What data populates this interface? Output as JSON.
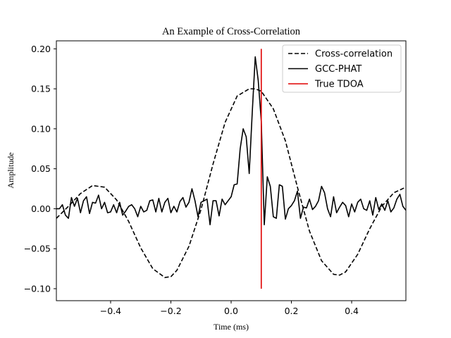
{
  "chart_data": {
    "type": "line",
    "title": "An Example of Cross-Correlation",
    "xlabel": "Time (ms)",
    "ylabel": "Amplitude",
    "xlim": [
      -0.58,
      0.58
    ],
    "ylim": [
      -0.115,
      0.21
    ],
    "xticks": [
      -0.4,
      -0.2,
      0.0,
      0.2,
      0.4
    ],
    "xtick_labels": [
      "−0.4",
      "−0.2",
      "0.0",
      "0.2",
      "0.4"
    ],
    "yticks": [
      0.2,
      0.15,
      0.1,
      0.05,
      0.0,
      -0.05,
      -0.1
    ],
    "ytick_labels": [
      "0.20",
      "0.15",
      "0.10",
      "0.05",
      "0.00",
      "−0.05",
      "−0.10"
    ],
    "grid": false,
    "legend_position": "top-right",
    "series": [
      {
        "name": "Cross-correlation",
        "color": "#000000",
        "style": "dashed",
        "x": [
          -0.58,
          -0.54,
          -0.5,
          -0.46,
          -0.42,
          -0.38,
          -0.34,
          -0.3,
          -0.26,
          -0.22,
          -0.2,
          -0.18,
          -0.14,
          -0.1,
          -0.06,
          -0.02,
          0.02,
          0.06,
          0.08,
          0.1,
          0.14,
          0.18,
          0.22,
          0.26,
          0.3,
          0.34,
          0.36,
          0.38,
          0.42,
          0.46,
          0.5,
          0.54,
          0.58
        ],
        "y": [
          -0.012,
          0.003,
          0.019,
          0.029,
          0.027,
          0.011,
          -0.016,
          -0.049,
          -0.075,
          -0.086,
          -0.085,
          -0.077,
          -0.047,
          -0.001,
          0.056,
          0.108,
          0.141,
          0.15,
          0.15,
          0.147,
          0.125,
          0.085,
          0.027,
          -0.028,
          -0.065,
          -0.082,
          -0.083,
          -0.079,
          -0.057,
          -0.025,
          0.003,
          0.02,
          0.027
        ]
      },
      {
        "name": "GCC-PHAT",
        "color": "#000000",
        "style": "solid",
        "x": [
          -0.58,
          -0.57,
          -0.56,
          -0.55,
          -0.54,
          -0.53,
          -0.52,
          -0.51,
          -0.5,
          -0.49,
          -0.48,
          -0.47,
          -0.46,
          -0.45,
          -0.44,
          -0.43,
          -0.42,
          -0.41,
          -0.4,
          -0.39,
          -0.38,
          -0.37,
          -0.36,
          -0.35,
          -0.34,
          -0.33,
          -0.32,
          -0.31,
          -0.3,
          -0.29,
          -0.28,
          -0.27,
          -0.26,
          -0.25,
          -0.24,
          -0.23,
          -0.22,
          -0.21,
          -0.2,
          -0.19,
          -0.18,
          -0.17,
          -0.16,
          -0.15,
          -0.14,
          -0.13,
          -0.12,
          -0.11,
          -0.1,
          -0.09,
          -0.08,
          -0.07,
          -0.06,
          -0.05,
          -0.04,
          -0.03,
          -0.02,
          -0.01,
          0.0,
          0.01,
          0.02,
          0.03,
          0.04,
          0.05,
          0.06,
          0.07,
          0.08,
          0.09,
          0.1,
          0.11,
          0.12,
          0.13,
          0.14,
          0.15,
          0.16,
          0.17,
          0.18,
          0.19,
          0.2,
          0.21,
          0.22,
          0.23,
          0.24,
          0.25,
          0.26,
          0.27,
          0.28,
          0.29,
          0.3,
          0.31,
          0.32,
          0.33,
          0.34,
          0.35,
          0.36,
          0.37,
          0.38,
          0.39,
          0.4,
          0.41,
          0.42,
          0.43,
          0.44,
          0.45,
          0.46,
          0.47,
          0.48,
          0.49,
          0.5,
          0.51,
          0.52,
          0.53,
          0.54,
          0.55,
          0.56,
          0.57,
          0.58
        ],
        "y": [
          0.0,
          0.0,
          0.005,
          -0.008,
          -0.012,
          0.014,
          0.003,
          0.013,
          -0.005,
          0.01,
          0.015,
          -0.006,
          0.008,
          0.007,
          0.017,
          0.0,
          0.008,
          -0.005,
          -0.004,
          0.005,
          -0.005,
          0.008,
          -0.008,
          -0.003,
          0.003,
          0.005,
          0.0,
          -0.01,
          0.003,
          -0.004,
          -0.002,
          0.01,
          0.011,
          -0.004,
          0.013,
          -0.004,
          0.008,
          0.013,
          -0.005,
          0.003,
          -0.004,
          0.009,
          0.014,
          0.002,
          0.008,
          0.025,
          0.01,
          -0.01,
          0.008,
          0.01,
          0.012,
          -0.02,
          0.01,
          0.01,
          -0.009,
          0.012,
          0.005,
          0.01,
          0.015,
          0.03,
          0.031,
          0.075,
          0.1,
          0.09,
          0.044,
          0.12,
          0.19,
          0.16,
          0.11,
          -0.02,
          0.04,
          0.028,
          -0.01,
          -0.012,
          0.03,
          0.028,
          -0.013,
          0.0,
          0.004,
          0.01,
          0.022,
          -0.012,
          0.002,
          0.001,
          0.012,
          -0.001,
          0.003,
          0.01,
          0.028,
          0.02,
          0.0,
          -0.01,
          0.015,
          -0.005,
          0.002,
          0.008,
          0.004,
          -0.01,
          0.006,
          -0.004,
          0.008,
          0.012,
          0.0,
          -0.002,
          0.01,
          -0.008,
          0.014,
          -0.001,
          0.006,
          -0.002,
          0.01,
          -0.004,
          0.001,
          0.012,
          0.018,
          0.003,
          -0.002
        ]
      },
      {
        "name": "True TDOA",
        "color": "#e00000",
        "style": "solid",
        "x": [
          0.1,
          0.1
        ],
        "y": [
          -0.1,
          0.2
        ]
      }
    ]
  }
}
